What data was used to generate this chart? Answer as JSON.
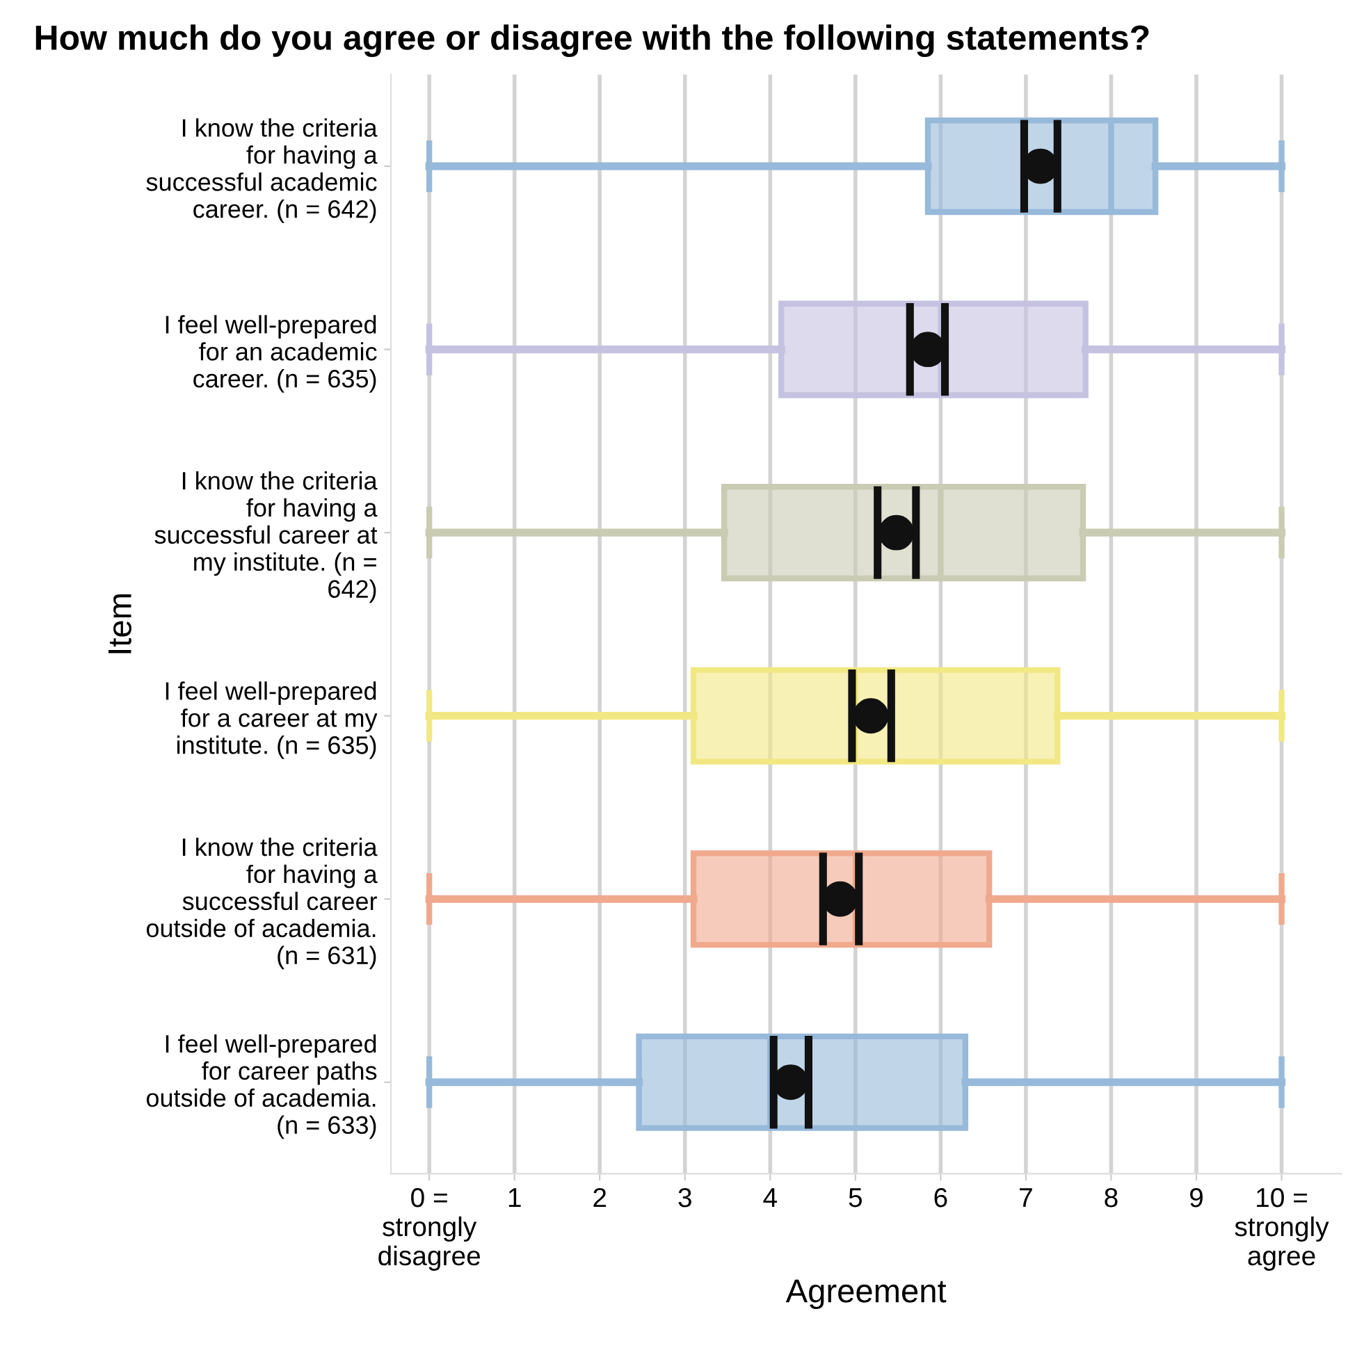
{
  "chart_data": {
    "type": "box",
    "orientation": "horizontal",
    "title": "How much do you agree or disagree with the following statements?",
    "xlabel": "Agreement",
    "ylabel": "Item",
    "categories": [
      "I know the criteria\nfor having a\nsuccessful academic\ncareer. (n = 642)",
      "I feel well-prepared\nfor an academic\ncareer. (n = 635)",
      "I know the criteria\nfor having a\nsuccessful career at\nmy institute. (n =\n642)",
      "I feel well-prepared\nfor a career at my\ninstitute. (n = 635)",
      "I know the criteria\nfor having a\nsuccessful career\noutside of academia.\n(n = 631)",
      "I feel well-prepared\nfor career paths\noutside of academia.\n(n = 633)"
    ],
    "xlim": [
      -0.45,
      10.7
    ],
    "xticks": [
      {
        "value": 0,
        "label": "0 =\nstrongly\ndisagree"
      },
      1,
      2,
      3,
      4,
      5,
      6,
      7,
      8,
      9,
      {
        "value": 10,
        "label": "10 =\nstrongly\nagree"
      }
    ],
    "grid": "x",
    "series": [
      {
        "colors": [
          "#97b9da",
          "#c4c2e0",
          "#c9cbb2",
          "#f2e883",
          "#f0a98d",
          "#97b9da"
        ],
        "boxes": [
          {
            "low": 0,
            "q1": 5.85,
            "median": 8,
            "q3": 8.52,
            "high": 10
          },
          {
            "low": 0,
            "q1": 4.13,
            "median": 6,
            "q3": 7.7,
            "high": 10
          },
          {
            "low": 0,
            "q1": 3.46,
            "median": 6,
            "q3": 7.67,
            "high": 10
          },
          {
            "low": 0,
            "q1": 3.1,
            "median": 5,
            "q3": 7.37,
            "high": 10
          },
          {
            "low": 0,
            "q1": 3.1,
            "median": 5,
            "q3": 6.57,
            "high": 10
          },
          {
            "low": 0,
            "q1": 2.46,
            "median": 4,
            "q3": 6.29,
            "high": 10
          }
        ]
      },
      {
        "type": "scatter",
        "color": "#111111",
        "marker": "circle",
        "values": [
          7.17,
          5.85,
          5.48,
          5.18,
          4.82,
          4.24
        ],
        "errors": [
          [
            6.98,
            7.37
          ],
          [
            5.64,
            6.05
          ],
          [
            5.26,
            5.71
          ],
          [
            4.96,
            5.42
          ],
          [
            4.62,
            5.04
          ],
          [
            4.04,
            4.45
          ]
        ]
      }
    ]
  }
}
